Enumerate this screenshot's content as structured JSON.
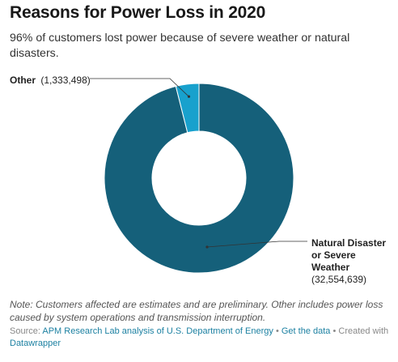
{
  "title": "Reasons for Power Loss in 2020",
  "subtitle": "96% of customers lost power because of severe weather or natural disasters.",
  "chart_data": {
    "type": "pie",
    "variant": "donut",
    "title": "Reasons for Power Loss in 2020",
    "categories": [
      "Natural Disaster or Severe Weather",
      "Other"
    ],
    "values": [
      32554639,
      1333498
    ],
    "colors": [
      "#15607a",
      "#18a1cd"
    ],
    "labels": [
      {
        "lines": [
          "Natural Disaster",
          "or Severe",
          "Weather"
        ],
        "value_text": "(32,554,639)"
      },
      {
        "lines": [
          "Other"
        ],
        "value_text": "(1,333,498)"
      }
    ]
  },
  "note": "Note: Customers affected are estimates and are preliminary. Other includes power loss caused by system operations and transmission interruption.",
  "source": {
    "prefix": "Source: ",
    "source_text": "APM Research Lab analysis of U.S. Department of Energy",
    "sep1": " • ",
    "get_data": "Get the data",
    "sep2": " • Created with ",
    "tool": "Datawrapper"
  }
}
